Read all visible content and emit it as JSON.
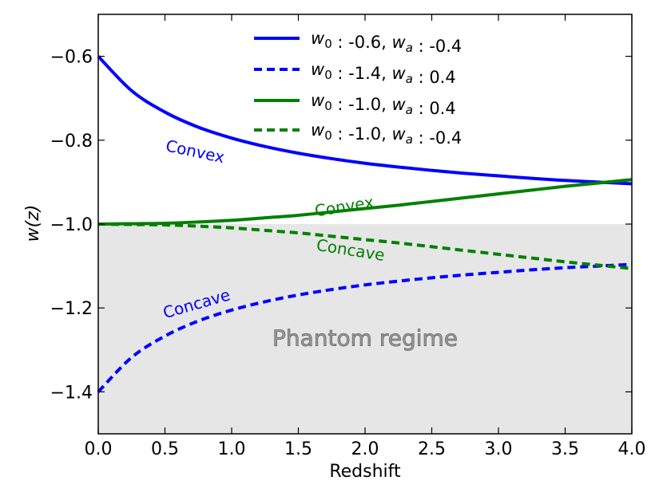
{
  "chart_data": {
    "type": "line",
    "title": "",
    "xlabel": "Redshift",
    "ylabel": "w(z)",
    "xlim": [
      0.0,
      4.0
    ],
    "ylim": [
      -1.5,
      -0.5
    ],
    "xticks": [
      "0.0",
      "0.5",
      "1.0",
      "1.5",
      "2.0",
      "2.5",
      "3.0",
      "3.5",
      "4.0"
    ],
    "yticks": [
      "−1.4",
      "−1.2",
      "−1.0",
      "−0.8",
      "−0.6"
    ],
    "x": [
      0.0,
      0.25,
      0.5,
      0.75,
      1.0,
      1.25,
      1.5,
      1.75,
      2.0,
      2.25,
      2.5,
      2.75,
      3.0,
      3.25,
      3.5,
      3.75,
      4.0
    ],
    "series": [
      {
        "name": "w0 : -0.6, wa : -0.4",
        "legend_parts": [
          "w",
          "0",
          " : -0.6, ",
          "w",
          "a",
          " : -0.4"
        ],
        "color": "#0000ff",
        "dashed": false,
        "values": [
          -0.6,
          -0.682,
          -0.733,
          -0.769,
          -0.795,
          -0.815,
          -0.831,
          -0.844,
          -0.855,
          -0.864,
          -0.872,
          -0.879,
          -0.885,
          -0.891,
          -0.896,
          -0.9,
          -0.904
        ]
      },
      {
        "name": "w0 : -1.4, wa : 0.4",
        "legend_parts": [
          "w",
          "0",
          " : -1.4, ",
          "w",
          "a",
          " : 0.4"
        ],
        "color": "#0000ff",
        "dashed": true,
        "values": [
          -1.4,
          -1.318,
          -1.267,
          -1.231,
          -1.205,
          -1.185,
          -1.169,
          -1.156,
          -1.145,
          -1.136,
          -1.128,
          -1.121,
          -1.115,
          -1.109,
          -1.104,
          -1.1,
          -1.096
        ]
      },
      {
        "name": "w0 : -1.0, wa : 0.4",
        "legend_parts": [
          "w",
          "0",
          " : -1.0, ",
          "w",
          "a",
          " : 0.4"
        ],
        "color": "#008000",
        "dashed": false,
        "values": [
          -1.0,
          -0.999,
          -0.998,
          -0.995,
          -0.991,
          -0.985,
          -0.979,
          -0.971,
          -0.963,
          -0.955,
          -0.946,
          -0.937,
          -0.928,
          -0.919,
          -0.91,
          -0.902,
          -0.894
        ]
      },
      {
        "name": "w0 : -1.0, wa : -0.4",
        "legend_parts": [
          "w",
          "0",
          " : -1.0, ",
          "w",
          "a",
          " : -0.4"
        ],
        "color": "#008000",
        "dashed": true,
        "values": [
          -1.0,
          -1.001,
          -1.002,
          -1.005,
          -1.009,
          -1.015,
          -1.021,
          -1.029,
          -1.037,
          -1.045,
          -1.054,
          -1.063,
          -1.072,
          -1.081,
          -1.09,
          -1.098,
          -1.106
        ]
      }
    ],
    "shaded_region": {
      "label": "Phantom regime",
      "y_from": -1.5,
      "y_to": -1.0,
      "color": "#e6e6e6"
    },
    "annotations": [
      {
        "text": "Convex",
        "x": 0.5,
        "y": -0.825,
        "angle": 12,
        "color": "#0000ff"
      },
      {
        "text": "Convex",
        "x": 1.63,
        "y": -0.982,
        "angle": -9,
        "color": "#008000"
      },
      {
        "text": "Concave",
        "x": 1.63,
        "y": -1.062,
        "angle": 9,
        "color": "#008000"
      },
      {
        "text": "Concave",
        "x": 0.5,
        "y": -1.225,
        "angle": -16,
        "color": "#0000ff"
      }
    ],
    "legend_position": "top-right",
    "grid": false
  }
}
